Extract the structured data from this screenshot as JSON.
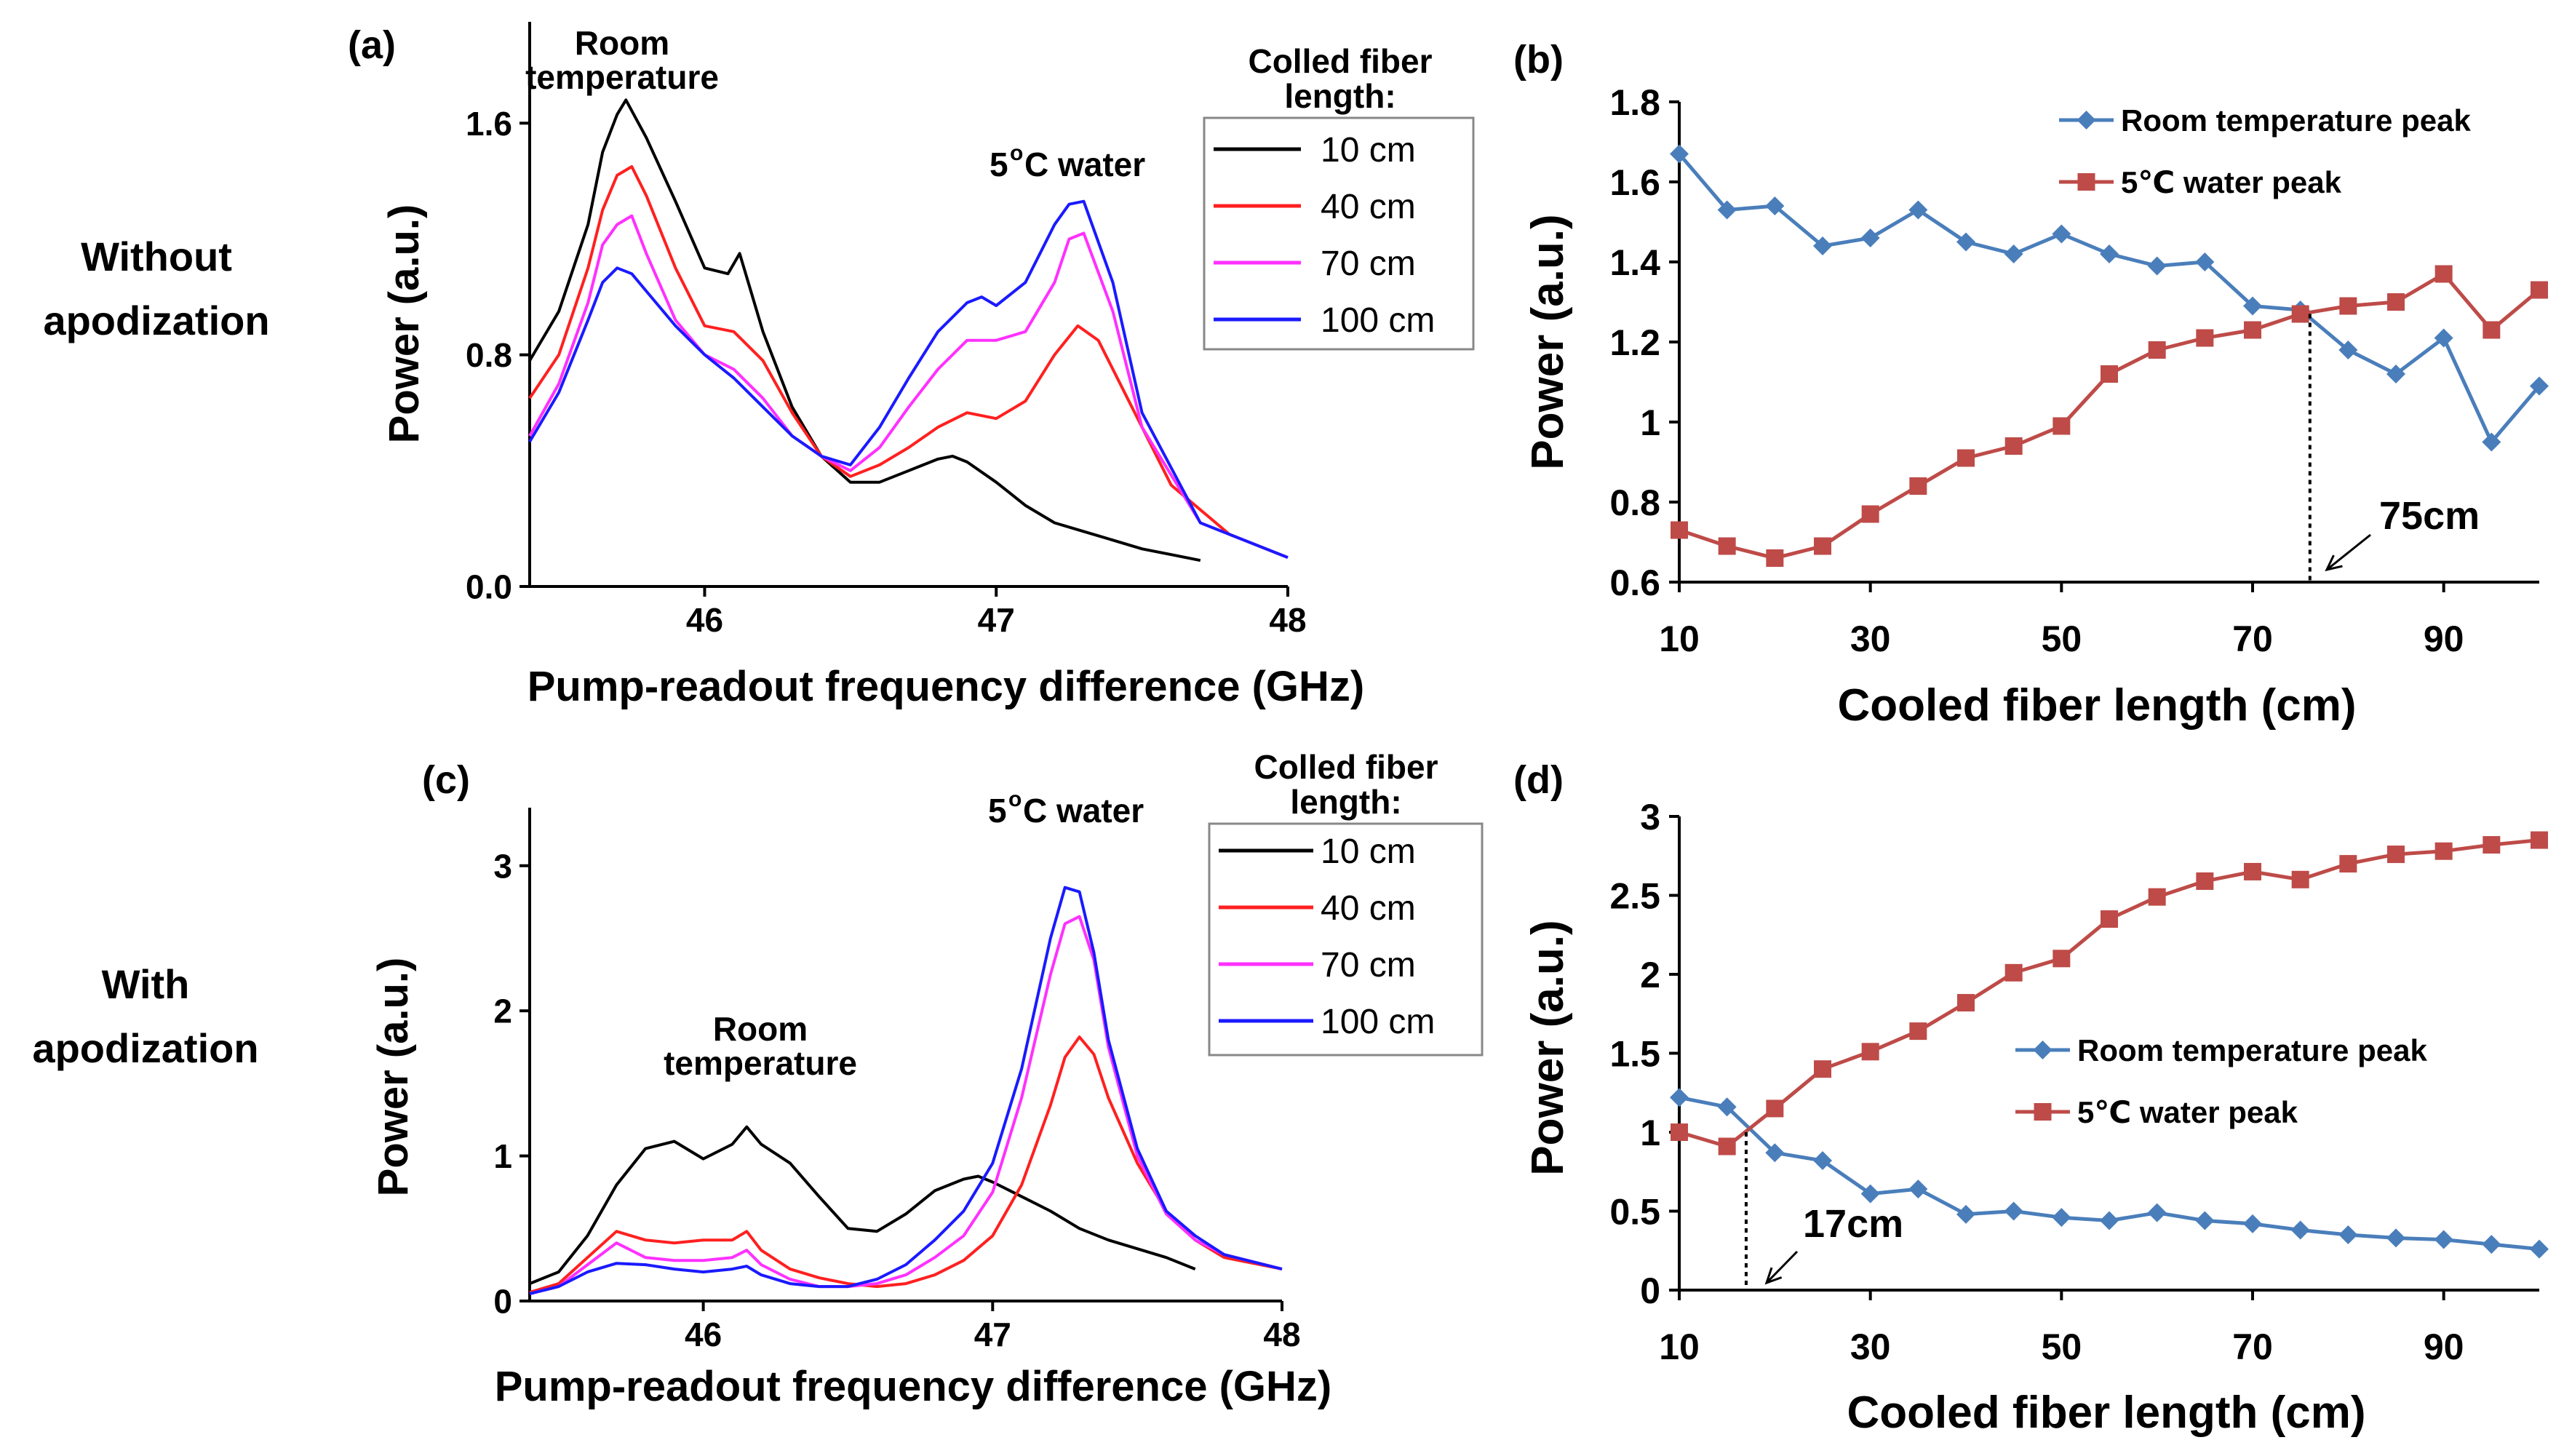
{
  "row_labels": [
    [
      "Without",
      "apodization"
    ],
    [
      "With",
      "apodization"
    ]
  ],
  "chart_data": [
    {
      "id": "a",
      "panel_label": "(a)",
      "type": "line",
      "xlabel": "Pump-readout frequency difference (GHz)",
      "ylabel": "Power (a.u.)",
      "xlim": [
        45.4,
        48.0
      ],
      "ylim": [
        0.0,
        1.95
      ],
      "xticks": [
        46,
        47,
        48
      ],
      "yticks": [
        0.0,
        0.8,
        1.6
      ],
      "ytick_labels": [
        "0.0",
        "0.8",
        "1.6"
      ],
      "legend_title": [
        "Colled fiber",
        "length:"
      ],
      "annotations": [
        {
          "lines": [
            "Room",
            "temperature"
          ]
        },
        {
          "lines": [
            "5",
            "o",
            "C water"
          ]
        }
      ],
      "series": [
        {
          "name": "10 cm",
          "color": "#000000",
          "x": [
            45.4,
            45.5,
            45.6,
            45.65,
            45.7,
            45.73,
            45.8,
            45.9,
            46.0,
            46.08,
            46.12,
            46.2,
            46.3,
            46.4,
            46.5,
            46.6,
            46.7,
            46.8,
            46.85,
            46.9,
            47.0,
            47.1,
            47.2,
            47.3,
            47.4,
            47.5,
            47.6,
            47.7
          ],
          "values": [
            0.78,
            0.95,
            1.25,
            1.5,
            1.63,
            1.68,
            1.55,
            1.33,
            1.1,
            1.08,
            1.15,
            0.88,
            0.62,
            0.45,
            0.36,
            0.36,
            0.4,
            0.44,
            0.45,
            0.43,
            0.36,
            0.28,
            0.22,
            0.19,
            0.16,
            0.13,
            0.11,
            0.09
          ]
        },
        {
          "name": "40 cm",
          "color": "#ff2020",
          "x": [
            45.4,
            45.5,
            45.6,
            45.65,
            45.7,
            45.75,
            45.8,
            45.9,
            46.0,
            46.1,
            46.2,
            46.3,
            46.4,
            46.5,
            46.6,
            46.7,
            46.8,
            46.9,
            47.0,
            47.1,
            47.2,
            47.28,
            47.35,
            47.45,
            47.6,
            47.8,
            48.0
          ],
          "values": [
            0.65,
            0.8,
            1.1,
            1.3,
            1.42,
            1.45,
            1.35,
            1.1,
            0.9,
            0.88,
            0.78,
            0.6,
            0.45,
            0.38,
            0.42,
            0.48,
            0.55,
            0.6,
            0.58,
            0.64,
            0.8,
            0.9,
            0.85,
            0.65,
            0.35,
            0.18,
            0.1
          ]
        },
        {
          "name": "70 cm",
          "color": "#ff30ff",
          "x": [
            45.4,
            45.5,
            45.6,
            45.65,
            45.7,
            45.75,
            45.8,
            45.9,
            46.0,
            46.1,
            46.2,
            46.3,
            46.4,
            46.5,
            46.6,
            46.7,
            46.8,
            46.9,
            47.0,
            47.1,
            47.2,
            47.25,
            47.3,
            47.4,
            47.5,
            47.7,
            48.0
          ],
          "values": [
            0.52,
            0.7,
            0.98,
            1.18,
            1.25,
            1.28,
            1.15,
            0.92,
            0.8,
            0.75,
            0.65,
            0.52,
            0.45,
            0.4,
            0.48,
            0.62,
            0.75,
            0.85,
            0.85,
            0.88,
            1.05,
            1.2,
            1.22,
            0.95,
            0.55,
            0.22,
            0.1
          ]
        },
        {
          "name": "100 cm",
          "color": "#1a1aff",
          "x": [
            45.4,
            45.5,
            45.6,
            45.65,
            45.7,
            45.75,
            45.8,
            45.9,
            46.0,
            46.1,
            46.2,
            46.3,
            46.4,
            46.5,
            46.6,
            46.7,
            46.8,
            46.9,
            46.95,
            47.0,
            47.1,
            47.2,
            47.25,
            47.3,
            47.4,
            47.5,
            47.7,
            48.0
          ],
          "values": [
            0.5,
            0.67,
            0.92,
            1.05,
            1.1,
            1.08,
            1.02,
            0.9,
            0.8,
            0.72,
            0.62,
            0.52,
            0.45,
            0.42,
            0.55,
            0.72,
            0.88,
            0.98,
            1.0,
            0.97,
            1.05,
            1.25,
            1.32,
            1.33,
            1.05,
            0.6,
            0.22,
            0.1
          ]
        }
      ]
    },
    {
      "id": "b",
      "panel_label": "(b)",
      "type": "line",
      "xlabel": "Cooled fiber length (cm)",
      "ylabel": "Power (a.u.)",
      "xlim": [
        10,
        100
      ],
      "ylim": [
        0.6,
        1.8
      ],
      "xticks": [
        10,
        30,
        50,
        70,
        90
      ],
      "yticks": [
        0.6,
        0.8,
        1.0,
        1.2,
        1.4,
        1.6,
        1.8
      ],
      "ytick_labels": [
        "0.6",
        "0.8",
        "1",
        "1.2",
        "1.4",
        "1.6",
        "1.8"
      ],
      "annotations": [
        {
          "text": "75cm",
          "x": 76
        }
      ],
      "series": [
        {
          "name": "Room temperature peak",
          "color": "#4a7ebb",
          "marker": "diamond",
          "x": [
            10,
            15,
            20,
            25,
            30,
            35,
            40,
            45,
            50,
            55,
            60,
            65,
            70,
            75,
            80,
            85,
            90,
            95,
            100
          ],
          "values": [
            1.67,
            1.53,
            1.54,
            1.44,
            1.46,
            1.53,
            1.45,
            1.42,
            1.47,
            1.42,
            1.39,
            1.4,
            1.29,
            1.28,
            1.18,
            1.12,
            1.21,
            0.95,
            1.09
          ]
        },
        {
          "name": "5℃ water peak",
          "color": "#be4b48",
          "marker": "square",
          "x": [
            10,
            15,
            20,
            25,
            30,
            35,
            40,
            45,
            50,
            55,
            60,
            65,
            70,
            75,
            80,
            85,
            90,
            95,
            100
          ],
          "values": [
            0.73,
            0.69,
            0.66,
            0.69,
            0.77,
            0.84,
            0.91,
            0.94,
            0.99,
            1.12,
            1.18,
            1.21,
            1.23,
            1.27,
            1.29,
            1.3,
            1.37,
            1.23,
            1.33
          ]
        }
      ]
    },
    {
      "id": "c",
      "panel_label": "(c)",
      "type": "line",
      "xlabel": "Pump-readout frequency difference (GHz)",
      "ylabel": "Power (a.u.)",
      "xlim": [
        45.4,
        48.0
      ],
      "ylim": [
        0,
        3.4
      ],
      "xticks": [
        46,
        47,
        48
      ],
      "yticks": [
        0,
        1,
        2,
        3
      ],
      "ytick_labels": [
        "0",
        "1",
        "2",
        "3"
      ],
      "legend_title": [
        "Colled fiber",
        "length:"
      ],
      "annotations": [
        {
          "lines": [
            "Room",
            "temperature"
          ]
        },
        {
          "lines": [
            "5",
            "o",
            "C water"
          ]
        }
      ],
      "series": [
        {
          "name": "10 cm",
          "color": "#000000",
          "x": [
            45.4,
            45.5,
            45.6,
            45.7,
            45.8,
            45.9,
            46.0,
            46.1,
            46.15,
            46.2,
            46.3,
            46.4,
            46.5,
            46.6,
            46.7,
            46.8,
            46.9,
            46.95,
            47.0,
            47.1,
            47.2,
            47.3,
            47.4,
            47.5,
            47.6,
            47.7
          ],
          "values": [
            0.12,
            0.2,
            0.45,
            0.8,
            1.05,
            1.1,
            0.98,
            1.08,
            1.2,
            1.08,
            0.95,
            0.72,
            0.5,
            0.48,
            0.6,
            0.76,
            0.84,
            0.86,
            0.82,
            0.72,
            0.62,
            0.5,
            0.42,
            0.36,
            0.3,
            0.22
          ]
        },
        {
          "name": "40 cm",
          "color": "#ff2020",
          "x": [
            45.4,
            45.5,
            45.6,
            45.7,
            45.8,
            45.9,
            46.0,
            46.1,
            46.15,
            46.2,
            46.3,
            46.4,
            46.5,
            46.6,
            46.7,
            46.8,
            46.9,
            47.0,
            47.1,
            47.2,
            47.25,
            47.3,
            47.35,
            47.4,
            47.5,
            47.6,
            47.7,
            47.8,
            48.0
          ],
          "values": [
            0.06,
            0.12,
            0.3,
            0.48,
            0.42,
            0.4,
            0.42,
            0.42,
            0.48,
            0.35,
            0.22,
            0.16,
            0.12,
            0.1,
            0.12,
            0.18,
            0.28,
            0.45,
            0.8,
            1.35,
            1.68,
            1.82,
            1.7,
            1.4,
            0.95,
            0.62,
            0.42,
            0.3,
            0.22
          ]
        },
        {
          "name": "70 cm",
          "color": "#ff30ff",
          "x": [
            45.4,
            45.5,
            45.6,
            45.7,
            45.8,
            45.9,
            46.0,
            46.1,
            46.15,
            46.2,
            46.3,
            46.4,
            46.5,
            46.6,
            46.7,
            46.8,
            46.9,
            47.0,
            47.1,
            47.2,
            47.25,
            47.3,
            47.35,
            47.4,
            47.5,
            47.6,
            47.7,
            47.8,
            48.0
          ],
          "values": [
            0.05,
            0.1,
            0.25,
            0.4,
            0.3,
            0.28,
            0.28,
            0.3,
            0.35,
            0.25,
            0.15,
            0.1,
            0.1,
            0.12,
            0.18,
            0.3,
            0.45,
            0.75,
            1.4,
            2.25,
            2.6,
            2.65,
            2.35,
            1.75,
            1.0,
            0.6,
            0.42,
            0.32,
            0.22
          ]
        },
        {
          "name": "100 cm",
          "color": "#1a1aff",
          "x": [
            45.4,
            45.5,
            45.6,
            45.7,
            45.8,
            45.9,
            46.0,
            46.1,
            46.15,
            46.2,
            46.3,
            46.4,
            46.5,
            46.6,
            46.7,
            46.8,
            46.9,
            47.0,
            47.1,
            47.2,
            47.25,
            47.3,
            47.35,
            47.4,
            47.5,
            47.6,
            47.7,
            47.8,
            48.0
          ],
          "values": [
            0.05,
            0.1,
            0.2,
            0.26,
            0.25,
            0.22,
            0.2,
            0.22,
            0.24,
            0.18,
            0.12,
            0.1,
            0.1,
            0.15,
            0.25,
            0.42,
            0.62,
            0.95,
            1.6,
            2.5,
            2.85,
            2.82,
            2.4,
            1.8,
            1.05,
            0.62,
            0.45,
            0.32,
            0.22
          ]
        }
      ]
    },
    {
      "id": "d",
      "panel_label": "(d)",
      "type": "line",
      "xlabel": "Cooled fiber length (cm)",
      "ylabel": "Power (a.u.)",
      "xlim": [
        10,
        100
      ],
      "ylim": [
        0,
        3
      ],
      "xticks": [
        10,
        30,
        50,
        70,
        90
      ],
      "yticks": [
        0,
        0.5,
        1,
        1.5,
        2,
        2.5,
        3
      ],
      "ytick_labels": [
        "0",
        "0.5",
        "1",
        "1.5",
        "2",
        "2.5",
        "3"
      ],
      "annotations": [
        {
          "text": "17cm",
          "x": 17
        }
      ],
      "series": [
        {
          "name": "Room temperature peak",
          "color": "#4a7ebb",
          "marker": "diamond",
          "x": [
            10,
            15,
            20,
            25,
            30,
            35,
            40,
            45,
            50,
            55,
            60,
            65,
            70,
            75,
            80,
            85,
            90,
            95,
            100
          ],
          "values": [
            1.22,
            1.16,
            0.87,
            0.82,
            0.61,
            0.64,
            0.48,
            0.5,
            0.46,
            0.44,
            0.49,
            0.44,
            0.42,
            0.38,
            0.35,
            0.33,
            0.32,
            0.29,
            0.26
          ]
        },
        {
          "name": "5℃ water peak",
          "color": "#be4b48",
          "marker": "square",
          "x": [
            10,
            15,
            20,
            25,
            30,
            35,
            40,
            45,
            50,
            55,
            60,
            65,
            70,
            75,
            80,
            85,
            90,
            95,
            100
          ],
          "values": [
            1.0,
            0.91,
            1.15,
            1.4,
            1.51,
            1.64,
            1.82,
            2.01,
            2.1,
            2.35,
            2.49,
            2.59,
            2.65,
            2.6,
            2.7,
            2.76,
            2.78,
            2.82,
            2.85
          ]
        }
      ]
    }
  ]
}
